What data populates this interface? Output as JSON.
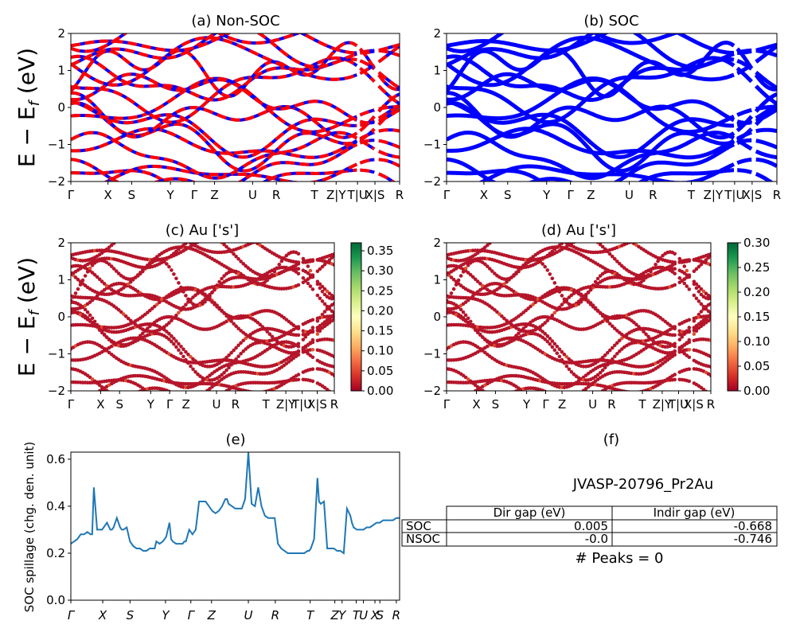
{
  "chart_data": [
    {
      "id": "a",
      "type": "line",
      "title": "(a) Non-SOC",
      "ylabel": "E − E_f (eV)",
      "ylim": [
        -2,
        2
      ],
      "yticks": [
        "−2",
        "−1",
        "0",
        "1",
        "2"
      ],
      "kpath_labels": [
        "Γ",
        "X",
        "S",
        "Y",
        "Γ",
        "Z",
        "U",
        "R",
        "T",
        "Z|Y",
        "T|U",
        "X|S",
        "R"
      ],
      "series_colors": [
        "#ff0000",
        "#0000ff"
      ]
    },
    {
      "id": "b",
      "type": "line",
      "title": "(b) SOC",
      "ylim": [
        -2,
        2
      ],
      "yticks": [
        "−2",
        "−1",
        "0",
        "1",
        "2"
      ],
      "kpath_labels": [
        "Γ",
        "X",
        "S",
        "Y",
        "Γ",
        "Z",
        "U",
        "R",
        "T",
        "Z|Y",
        "T|U",
        "X|S",
        "R"
      ],
      "series_colors": [
        "#0000ff"
      ]
    },
    {
      "id": "c",
      "type": "scatter",
      "title": "(c)  Au ['s']",
      "ylabel": "E − E_f (eV)",
      "ylim": [
        -2,
        2
      ],
      "yticks": [
        "−2",
        "−1",
        "0",
        "1",
        "2"
      ],
      "kpath_labels": [
        "Γ",
        "X",
        "S",
        "Y",
        "Γ",
        "Z",
        "U",
        "R",
        "T",
        "Z|Y",
        "T|U",
        "X|S",
        "R"
      ],
      "colorbar": {
        "min": 0.0,
        "max": 0.37,
        "ticks": [
          "0.00",
          "0.05",
          "0.10",
          "0.15",
          "0.20",
          "0.25",
          "0.30",
          "0.35"
        ],
        "colormap": "RdYlGn"
      }
    },
    {
      "id": "d",
      "type": "scatter",
      "title": "(d) Au ['s']",
      "ylim": [
        -2,
        2
      ],
      "yticks": [
        "−2",
        "−1",
        "0",
        "1",
        "2"
      ],
      "kpath_labels": [
        "Γ",
        "X",
        "S",
        "Y",
        "Γ",
        "Z",
        "U",
        "R",
        "T",
        "Z|Y",
        "T|U",
        "X|S",
        "R"
      ],
      "colorbar": {
        "min": 0.0,
        "max": 0.3,
        "ticks": [
          "0.00",
          "0.05",
          "0.10",
          "0.15",
          "0.20",
          "0.25",
          "0.30"
        ],
        "colormap": "RdYlGn"
      }
    },
    {
      "id": "e",
      "type": "line",
      "title": "(e)",
      "ylabel": "SOC spillage (chg. den. unit)",
      "ylim": [
        0.0,
        0.63
      ],
      "yticks": [
        "0.0",
        "0.2",
        "0.4",
        "0.6"
      ],
      "kpath_labels": [
        "Γ",
        "X",
        "S",
        "Y",
        "Γ",
        "Z",
        "U",
        "R",
        "T",
        "Z",
        "Y",
        "T",
        "U",
        "X",
        "S",
        "R"
      ],
      "x": [
        0,
        2,
        4,
        6,
        8,
        10,
        12,
        13,
        14,
        16,
        18,
        19,
        20,
        22,
        24,
        25,
        26,
        28,
        30,
        31,
        32,
        34,
        36,
        38,
        40,
        42,
        44,
        46,
        48,
        50,
        51,
        52,
        54,
        56,
        58,
        60,
        61,
        62,
        64,
        66,
        68,
        69,
        70,
        72,
        74,
        76,
        78,
        80,
        82,
        83,
        84,
        86,
        88,
        90,
        92,
        94,
        95,
        96,
        98,
        100,
        102,
        104,
        106,
        108,
        110,
        112,
        114,
        116,
        118,
        120,
        122,
        124,
        126,
        128,
        130,
        132,
        134,
        136,
        138,
        140,
        142,
        144,
        145,
        146,
        148,
        150,
        151,
        152,
        154,
        156,
        158,
        160,
        162,
        164,
        166,
        168,
        170,
        171,
        172,
        174,
        176,
        178,
        180,
        182,
        184,
        186,
        188,
        190,
        192,
        194,
        196,
        198,
        200
      ],
      "values": [
        0.24,
        0.25,
        0.26,
        0.28,
        0.28,
        0.29,
        0.28,
        0.28,
        0.48,
        0.3,
        0.3,
        0.3,
        0.31,
        0.33,
        0.3,
        0.3,
        0.31,
        0.35,
        0.31,
        0.3,
        0.3,
        0.31,
        0.25,
        0.23,
        0.22,
        0.22,
        0.21,
        0.21,
        0.22,
        0.22,
        0.22,
        0.25,
        0.24,
        0.25,
        0.27,
        0.33,
        0.26,
        0.25,
        0.24,
        0.24,
        0.24,
        0.25,
        0.25,
        0.3,
        0.28,
        0.3,
        0.42,
        0.42,
        0.42,
        0.41,
        0.4,
        0.38,
        0.37,
        0.38,
        0.4,
        0.43,
        0.43,
        0.41,
        0.4,
        0.39,
        0.39,
        0.39,
        0.43,
        0.63,
        0.41,
        0.4,
        0.48,
        0.4,
        0.36,
        0.35,
        0.35,
        0.35,
        0.24,
        0.22,
        0.21,
        0.2,
        0.2,
        0.2,
        0.2,
        0.2,
        0.2,
        0.21,
        0.21,
        0.22,
        0.26,
        0.52,
        0.42,
        0.41,
        0.42,
        0.22,
        0.22,
        0.22,
        0.21,
        0.21,
        0.2,
        0.39,
        0.36,
        0.33,
        0.31,
        0.3,
        0.3,
        0.3,
        0.31,
        0.31,
        0.32,
        0.33,
        0.33,
        0.34,
        0.34,
        0.34,
        0.34,
        0.35,
        0.35
      ],
      "line_color": "#1f77b4"
    }
  ],
  "table": {
    "title": "(f)",
    "material": "JVASP-20796_Pr2Au",
    "columns": [
      "Dir gap (eV)",
      "Indir gap (eV)"
    ],
    "rows": [
      {
        "label": "SOC",
        "dir": "0.005",
        "indir": "-0.668"
      },
      {
        "label": "NSOC",
        "dir": "-0.0",
        "indir": "-0.746"
      }
    ],
    "peaks": "# Peaks = 0"
  }
}
